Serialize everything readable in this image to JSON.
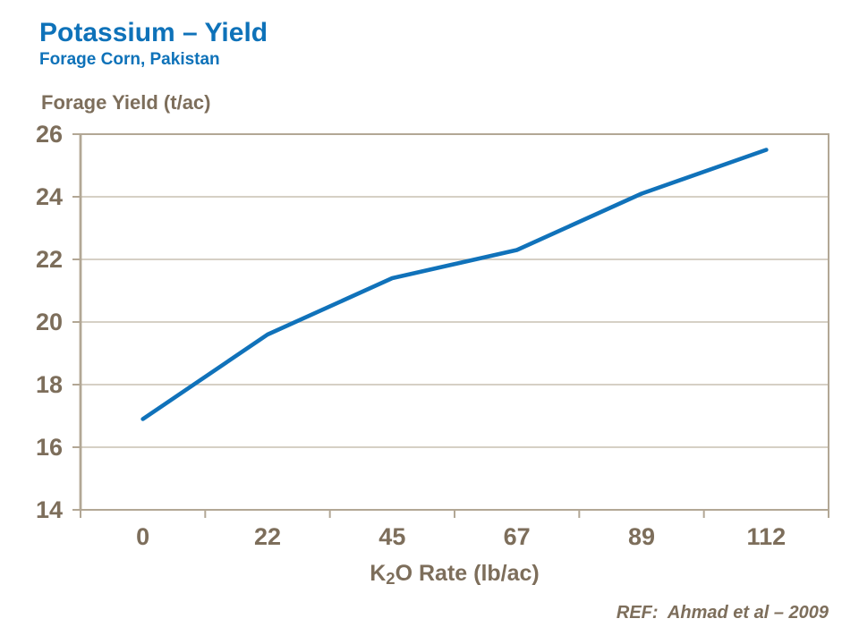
{
  "page": {
    "title": "Potassium – Yield",
    "subtitle": "Forage Corn, Pakistan",
    "reference": "REF:  Ahmad et al – 2009"
  },
  "chart_data": {
    "type": "line",
    "title": "",
    "ylabel": "Forage Yield (t/ac)",
    "xlabel": {
      "pre": "K",
      "sub": "2",
      "post": "O Rate (lb/ac)"
    },
    "categories": [
      "0",
      "22",
      "45",
      "67",
      "89",
      "112"
    ],
    "series": [
      {
        "name": "Forage Yield (t/ac)",
        "values": [
          16.9,
          19.6,
          21.4,
          22.3,
          24.1,
          25.5
        ],
        "color": "#1072ba"
      }
    ],
    "ylim": [
      14,
      26
    ],
    "yticks": [
      26,
      24,
      22,
      20,
      18,
      16,
      14
    ],
    "grid": "horizontal",
    "legend": "none"
  },
  "colors": {
    "title_blue": "#0e72b9",
    "line_blue": "#1072ba",
    "axis_text": "#7d6e5b",
    "gridline": "#c9c0b2",
    "axis_border": "#b2a795",
    "background": "#ffffff"
  }
}
